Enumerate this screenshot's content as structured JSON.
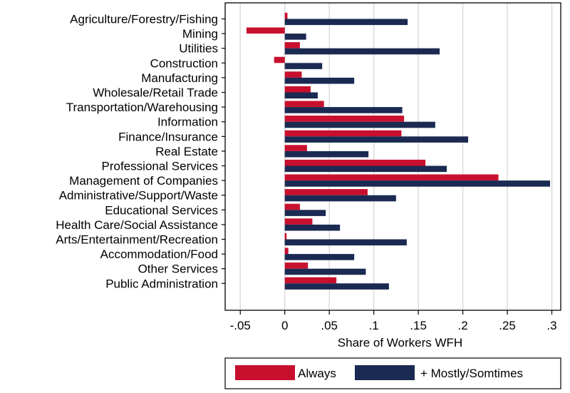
{
  "chart_data": {
    "type": "bar",
    "orientation": "horizontal",
    "categories": [
      "Agriculture/Forestry/Fishing",
      "Mining",
      "Utilities",
      "Construction",
      "Manufacturing",
      "Wholesale/Retail Trade",
      "Transportation/Warehousing",
      "Information",
      "Finance/Insurance",
      "Real Estate",
      "Professional Services",
      "Management of Companies",
      "Administrative/Support/Waste",
      "Educational Services",
      "Health Care/Social Assistance",
      "Arts/Entertainment/Recreation",
      "Accommodation/Food",
      "Other Services",
      "Public Administration"
    ],
    "series": [
      {
        "name": "Always",
        "color": "#c8102e",
        "values": [
          0.003,
          -0.043,
          0.017,
          -0.012,
          0.019,
          0.029,
          0.044,
          0.134,
          0.131,
          0.025,
          0.158,
          0.24,
          0.093,
          0.017,
          0.031,
          0.002,
          0.004,
          0.026,
          0.058
        ]
      },
      {
        "name": "+ Mostly/Somtimes",
        "color": "#1b2a52",
        "values": [
          0.138,
          0.024,
          0.174,
          0.042,
          0.078,
          0.037,
          0.132,
          0.169,
          0.206,
          0.094,
          0.182,
          0.298,
          0.125,
          0.046,
          0.062,
          0.137,
          0.078,
          0.091,
          0.117
        ]
      }
    ],
    "xlabel": "Share of Workers WFH",
    "ylabel": "",
    "title": "",
    "xlim": [
      -0.067,
      0.31
    ],
    "xticks": [
      -0.05,
      0,
      0.05,
      0.1,
      0.15,
      0.2,
      0.25,
      0.3
    ],
    "xtick_labels": [
      "-.05",
      "0",
      ".05",
      ".1",
      ".15",
      ".2",
      ".25",
      ".3"
    ],
    "grid": true,
    "legend_position": "bottom"
  }
}
